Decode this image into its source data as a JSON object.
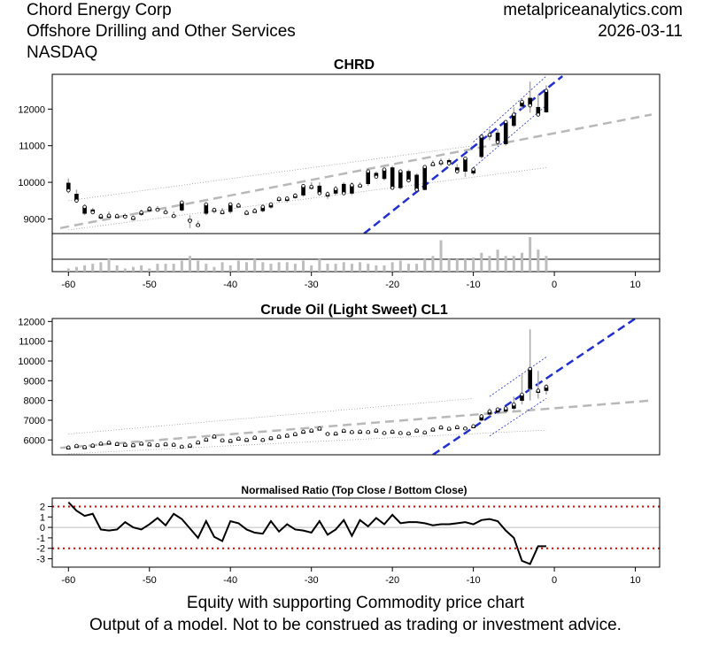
{
  "header": {
    "company": "Chord Energy Corp",
    "sector": "Offshore Drilling and Other Services",
    "exchange": "NASDAQ",
    "site": "metalpriceanalytics.com",
    "date": "2026-03-11"
  },
  "footer": {
    "line1": "Equity with supporting Commodity price chart",
    "line2": "Output of a model. Not to be construed as trading or investment advice."
  },
  "chart_data": [
    {
      "type": "candlestick",
      "title": "CHRD",
      "xlim": [
        -62,
        13
      ],
      "ylim": [
        8600,
        12950
      ],
      "x_ticks": [
        -60,
        -50,
        -40,
        -30,
        -20,
        -10,
        0,
        10
      ],
      "y_ticks": [
        9000,
        10000,
        11000,
        12000
      ],
      "x": [
        -60,
        -59,
        -58,
        -57,
        -56,
        -55,
        -54,
        -53,
        -52,
        -51,
        -50,
        -49,
        -48,
        -47,
        -46,
        -45,
        -44,
        -43,
        -42,
        -41,
        -40,
        -39,
        -38,
        -37,
        -36,
        -35,
        -34,
        -33,
        -32,
        -31,
        -30,
        -29,
        -28,
        -27,
        -26,
        -25,
        -24,
        -23,
        -22,
        -21,
        -20,
        -19,
        -18,
        -17,
        -16,
        -15,
        -14,
        -13,
        -12,
        -11,
        -10,
        -9,
        -8,
        -7,
        -6,
        -5,
        -4,
        -3,
        -2,
        -1
      ],
      "open": [
        9980,
        9680,
        9150,
        9250,
        9020,
        9050,
        9060,
        9100,
        9000,
        9120,
        9220,
        9280,
        9200,
        9100,
        9240,
        8990,
        8850,
        9150,
        9200,
        9170,
        9200,
        9350,
        9150,
        9200,
        9220,
        9320,
        9500,
        9500,
        9580,
        9650,
        9850,
        9900,
        9620,
        9700,
        9950,
        9700,
        9920,
        9960,
        10250,
        10100,
        10400,
        9850,
        10300,
        10200,
        9800,
        10500,
        10500,
        10600,
        10400,
        10300,
        10250,
        10700,
        11300,
        11350,
        11050,
        11550,
        12080,
        12300,
        12050,
        11920
      ],
      "close": [
        9780,
        9500,
        9330,
        9180,
        9080,
        9090,
        9080,
        9060,
        9030,
        9180,
        9280,
        9250,
        9180,
        9080,
        9450,
        8950,
        8830,
        9400,
        9250,
        9190,
        9400,
        9370,
        9170,
        9220,
        9330,
        9400,
        9550,
        9560,
        9640,
        9900,
        9880,
        9700,
        9680,
        9820,
        9700,
        9920,
        9910,
        10300,
        10150,
        10350,
        9850,
        10300,
        10050,
        9800,
        10420,
        10500,
        10550,
        10520,
        10300,
        10650,
        10350,
        11250,
        11300,
        11100,
        11650,
        11850,
        12200,
        12100,
        11850,
        12500
      ],
      "high": [
        10100,
        9800,
        9400,
        9300,
        9150,
        9200,
        9150,
        9150,
        9100,
        9250,
        9350,
        9350,
        9300,
        9200,
        9500,
        9100,
        8950,
        9450,
        9300,
        9300,
        9450,
        9450,
        9250,
        9300,
        9400,
        9450,
        9600,
        9600,
        9700,
        9950,
        10000,
        10000,
        9750,
        9900,
        10000,
        10000,
        10000,
        10350,
        10300,
        10400,
        10450,
        10350,
        10350,
        10250,
        10450,
        10600,
        10650,
        10650,
        10500,
        10700,
        10400,
        11300,
        11450,
        11450,
        11700,
        12050,
        12300,
        12750,
        12400,
        12650
      ],
      "low": [
        9700,
        9450,
        9100,
        9150,
        8980,
        9000,
        9020,
        9000,
        8950,
        9080,
        9180,
        9200,
        9150,
        9050,
        9200,
        8750,
        8800,
        9100,
        9150,
        9120,
        9150,
        9300,
        9100,
        9150,
        9180,
        9280,
        9450,
        9450,
        9550,
        9600,
        9800,
        9650,
        9550,
        9650,
        9650,
        9650,
        9850,
        9900,
        10100,
        10050,
        9800,
        9800,
        10000,
        9750,
        9780,
        10450,
        10450,
        10450,
        10250,
        10150,
        10200,
        10650,
        11150,
        11000,
        11000,
        11500,
        12000,
        11900,
        11800,
        11900
      ],
      "volume": [
        10,
        15,
        20,
        25,
        30,
        40,
        20,
        10,
        15,
        20,
        10,
        25,
        25,
        25,
        35,
        50,
        35,
        25,
        15,
        30,
        20,
        35,
        30,
        40,
        30,
        25,
        30,
        30,
        25,
        35,
        20,
        40,
        25,
        25,
        30,
        25,
        30,
        25,
        20,
        20,
        30,
        35,
        25,
        25,
        40,
        50,
        100,
        40,
        40,
        40,
        45,
        60,
        50,
        70,
        50,
        50,
        60,
        110,
        70,
        50
      ],
      "regression_fit": {
        "x": [
          -61,
          12
        ],
        "y": [
          8750,
          11850
        ]
      },
      "regression_upper": {
        "x": [
          -60,
          -10
        ],
        "y": [
          9500,
          11000
        ]
      },
      "regression_lower": {
        "x": [
          -60,
          -1
        ],
        "y": [
          8700,
          10400
        ]
      },
      "trend_line": {
        "x": [
          -23.5,
          1
        ],
        "y": [
          8600,
          12900
        ]
      },
      "trend_upper": {
        "x": [
          -10,
          -1
        ],
        "y": [
          11100,
          12900
        ]
      },
      "trend_lower": {
        "x": [
          -10,
          -1
        ],
        "y": [
          10400,
          12100
        ]
      }
    },
    {
      "type": "candlestick",
      "title": "Crude Oil (Light Sweet) CL1",
      "xlim": [
        -62,
        13
      ],
      "ylim": [
        5250,
        12150
      ],
      "y_ticks": [
        6000,
        7000,
        8000,
        9000,
        10000,
        11000,
        12000
      ],
      "x": [
        -60,
        -59,
        -58,
        -57,
        -56,
        -55,
        -54,
        -53,
        -52,
        -51,
        -50,
        -49,
        -48,
        -47,
        -46,
        -45,
        -44,
        -43,
        -42,
        -41,
        -40,
        -39,
        -38,
        -37,
        -36,
        -35,
        -34,
        -33,
        -32,
        -31,
        -30,
        -29,
        -28,
        -27,
        -26,
        -25,
        -24,
        -23,
        -22,
        -21,
        -20,
        -19,
        -18,
        -17,
        -16,
        -15,
        -14,
        -13,
        -12,
        -11,
        -10,
        -9,
        -8,
        -7,
        -6,
        -5,
        -4,
        -3,
        -2,
        -1
      ],
      "open": [
        5600,
        5680,
        5620,
        5700,
        5800,
        5850,
        5780,
        5750,
        5720,
        5800,
        5760,
        5750,
        5780,
        5770,
        5680,
        5700,
        5850,
        6000,
        6150,
        6000,
        5950,
        6050,
        6000,
        6100,
        6020,
        6080,
        6150,
        6200,
        6280,
        6380,
        6450,
        6550,
        6350,
        6300,
        6450,
        6420,
        6400,
        6420,
        6450,
        6380,
        6400,
        6380,
        6350,
        6450,
        6400,
        6500,
        6600,
        6580,
        6600,
        6620,
        6680,
        7000,
        7300,
        7400,
        7450,
        7600,
        8000,
        8600,
        8400,
        8500
      ],
      "close": [
        5620,
        5700,
        5640,
        5720,
        5820,
        5870,
        5800,
        5760,
        5740,
        5820,
        5780,
        5740,
        5790,
        5760,
        5660,
        5720,
        5880,
        6020,
        6180,
        5980,
        5960,
        6070,
        6010,
        6120,
        6000,
        6100,
        6170,
        6220,
        6300,
        6420,
        6480,
        6580,
        6300,
        6330,
        6470,
        6400,
        6420,
        6400,
        6480,
        6350,
        6420,
        6350,
        6330,
        6480,
        6380,
        6530,
        6640,
        6570,
        6650,
        6580,
        6700,
        7200,
        7450,
        7550,
        7600,
        7800,
        8300,
        9600,
        8500,
        8700
      ],
      "high": [
        5700,
        5760,
        5700,
        5780,
        5880,
        5920,
        5860,
        5820,
        5800,
        5880,
        5830,
        5800,
        5850,
        5820,
        5740,
        5780,
        5950,
        6080,
        6250,
        6080,
        6020,
        6120,
        6080,
        6180,
        6080,
        6160,
        6230,
        6290,
        6360,
        6480,
        6550,
        6640,
        6420,
        6400,
        6520,
        6480,
        6480,
        6480,
        6530,
        6450,
        6480,
        6450,
        6420,
        6520,
        6460,
        6580,
        6700,
        6640,
        6700,
        6680,
        6750,
        7300,
        7600,
        7650,
        7700,
        8200,
        9300,
        11600,
        9500,
        8800
      ],
      "low": [
        5550,
        5620,
        5560,
        5660,
        5740,
        5800,
        5720,
        5700,
        5680,
        5750,
        5700,
        5680,
        5720,
        5700,
        5600,
        5650,
        5800,
        5950,
        6080,
        5920,
        5900,
        6000,
        5950,
        6040,
        5950,
        6020,
        6080,
        6150,
        6220,
        6320,
        6400,
        6480,
        6280,
        6250,
        6400,
        6350,
        6350,
        6350,
        6400,
        6300,
        6350,
        6300,
        6280,
        6400,
        6340,
        6450,
        6550,
        6520,
        6550,
        6540,
        6600,
        6950,
        7200,
        7300,
        7350,
        7500,
        7800,
        8000,
        8100,
        8300
      ],
      "regression_fit": {
        "x": [
          -61,
          12
        ],
        "y": [
          5600,
          8000
        ]
      },
      "regression_upper": {
        "x": [
          -60,
          -10
        ],
        "y": [
          6300,
          8100
        ]
      },
      "regression_lower": {
        "x": [
          -60,
          -1
        ],
        "y": [
          5300,
          6500
        ]
      },
      "trend_line": {
        "x": [
          -15,
          10
        ],
        "y": [
          5250,
          12150
        ]
      },
      "trend_upper": {
        "x": [
          -8,
          -1
        ],
        "y": [
          8200,
          10200
        ]
      },
      "trend_lower": {
        "x": [
          -8,
          -1
        ],
        "y": [
          6200,
          8100
        ]
      }
    },
    {
      "type": "line",
      "title": "Normalised Ratio (Top Close / Bottom Close)",
      "xlim": [
        -62,
        13
      ],
      "ylim": [
        -3.8,
        2.8
      ],
      "x_ticks": [
        -60,
        -50,
        -40,
        -30,
        -20,
        -10,
        0,
        10
      ],
      "y_ticks": [
        -3,
        -2,
        -1,
        0,
        1,
        2
      ],
      "reference_lines": [
        2,
        -2
      ],
      "x": [
        -60,
        -59,
        -58,
        -57,
        -56,
        -55,
        -54,
        -53,
        -52,
        -51,
        -50,
        -49,
        -48,
        -47,
        -46,
        -45,
        -44,
        -43,
        -42,
        -41,
        -40,
        -39,
        -38,
        -37,
        -36,
        -35,
        -34,
        -33,
        -32,
        -31,
        -30,
        -29,
        -28,
        -27,
        -26,
        -25,
        -24,
        -23,
        -22,
        -21,
        -20,
        -19,
        -18,
        -17,
        -16,
        -15,
        -14,
        -13,
        -12,
        -11,
        -10,
        -9,
        -8,
        -7,
        -6,
        -5,
        -4,
        -3,
        -2,
        -1
      ],
      "values": [
        2.4,
        1.6,
        1.1,
        1.3,
        -0.2,
        -0.3,
        -0.2,
        0.5,
        0.0,
        -0.2,
        0.3,
        0.9,
        0.2,
        1.3,
        0.8,
        -0.1,
        -1.0,
        0.6,
        -0.9,
        -1.3,
        0.6,
        0.4,
        -0.2,
        -0.5,
        -0.6,
        0.6,
        -0.4,
        0.3,
        -0.2,
        -0.3,
        -0.5,
        0.6,
        -0.7,
        -0.2,
        0.7,
        -0.8,
        0.7,
        0.1,
        0.9,
        0.3,
        1.2,
        0.4,
        0.5,
        0.5,
        0.4,
        0.2,
        0.3,
        0.3,
        0.4,
        0.5,
        0.3,
        0.7,
        0.8,
        0.6,
        -0.3,
        -1.0,
        -3.2,
        -3.5,
        -1.8,
        -1.8
      ]
    }
  ]
}
